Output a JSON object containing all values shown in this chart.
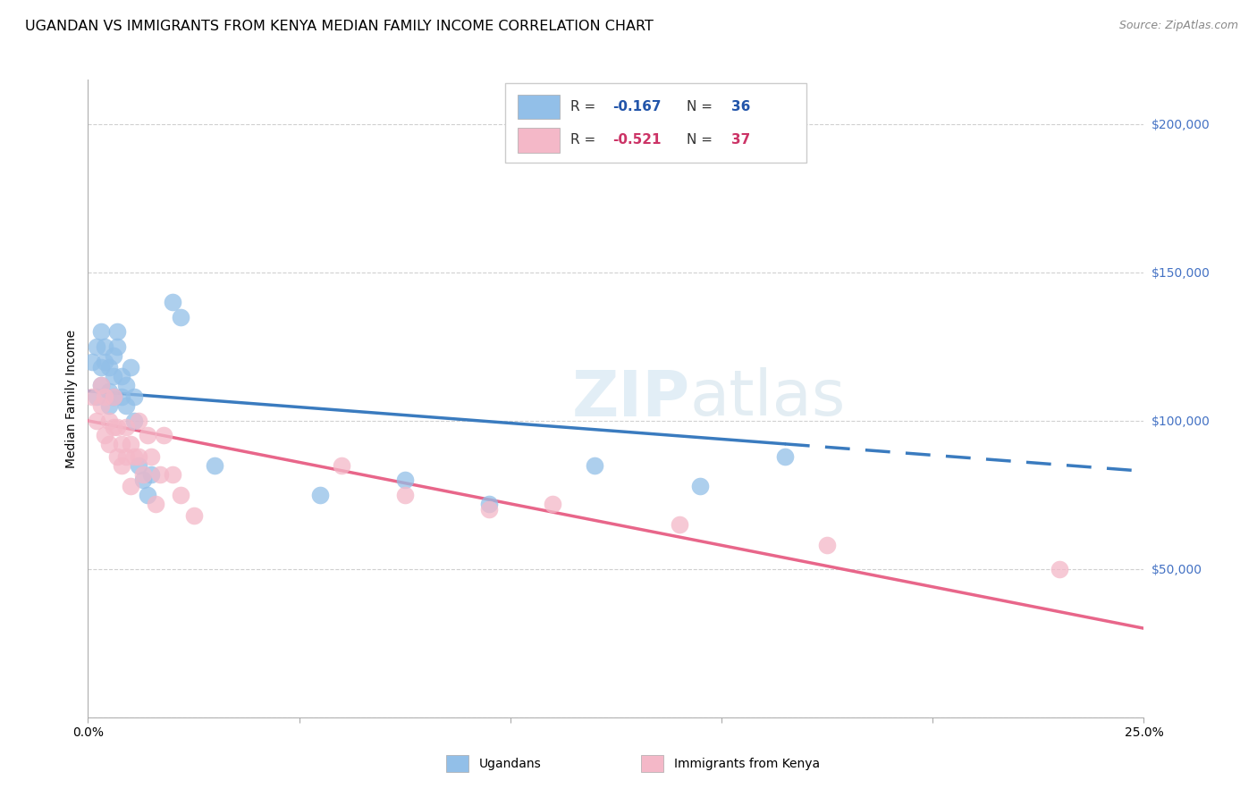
{
  "title": "UGANDAN VS IMMIGRANTS FROM KENYA MEDIAN FAMILY INCOME CORRELATION CHART",
  "source": "Source: ZipAtlas.com",
  "ylabel": "Median Family Income",
  "xlim": [
    0.0,
    0.25
  ],
  "ylim": [
    0,
    215000
  ],
  "yticks": [
    0,
    50000,
    100000,
    150000,
    200000
  ],
  "ytick_labels_right": [
    "",
    "$50,000",
    "$100,000",
    "$150,000",
    "$200,000"
  ],
  "background_color": "#ffffff",
  "watermark_text": "ZIPatlas",
  "blue_color": "#92bfe8",
  "pink_color": "#f4b8c8",
  "blue_line_color": "#3a7bbf",
  "pink_line_color": "#e8668a",
  "grid_color": "#d0d0d0",
  "title_fontsize": 11.5,
  "axis_label_fontsize": 10,
  "tick_fontsize": 10,
  "right_ytick_color": "#4472c4",
  "legend_label1": "Ugandans",
  "legend_label2": "Immigrants from Kenya",
  "blue_line_x0": 0.0,
  "blue_line_y0": 110000,
  "blue_line_x1": 0.25,
  "blue_line_y1": 83000,
  "blue_line_solid_end": 0.165,
  "pink_line_x0": 0.0,
  "pink_line_y0": 100000,
  "pink_line_x1": 0.25,
  "pink_line_y1": 30000,
  "ugandan_x": [
    0.001,
    0.002,
    0.002,
    0.003,
    0.003,
    0.003,
    0.004,
    0.004,
    0.005,
    0.005,
    0.005,
    0.006,
    0.006,
    0.006,
    0.007,
    0.007,
    0.008,
    0.008,
    0.009,
    0.009,
    0.01,
    0.011,
    0.011,
    0.012,
    0.013,
    0.014,
    0.015,
    0.02,
    0.022,
    0.03,
    0.055,
    0.075,
    0.095,
    0.12,
    0.145,
    0.165
  ],
  "ugandan_y": [
    120000,
    125000,
    108000,
    130000,
    118000,
    112000,
    120000,
    125000,
    118000,
    110000,
    105000,
    122000,
    115000,
    108000,
    130000,
    125000,
    115000,
    108000,
    112000,
    105000,
    118000,
    108000,
    100000,
    85000,
    80000,
    75000,
    82000,
    140000,
    135000,
    85000,
    75000,
    80000,
    72000,
    85000,
    78000,
    88000
  ],
  "kenya_x": [
    0.001,
    0.002,
    0.003,
    0.003,
    0.004,
    0.004,
    0.005,
    0.005,
    0.006,
    0.006,
    0.007,
    0.007,
    0.008,
    0.008,
    0.009,
    0.009,
    0.01,
    0.01,
    0.011,
    0.012,
    0.012,
    0.013,
    0.014,
    0.015,
    0.016,
    0.017,
    0.018,
    0.02,
    0.022,
    0.025,
    0.06,
    0.075,
    0.095,
    0.11,
    0.14,
    0.175,
    0.23
  ],
  "kenya_y": [
    108000,
    100000,
    112000,
    105000,
    95000,
    108000,
    100000,
    92000,
    108000,
    98000,
    88000,
    98000,
    92000,
    85000,
    98000,
    88000,
    92000,
    78000,
    88000,
    100000,
    88000,
    82000,
    95000,
    88000,
    72000,
    82000,
    95000,
    82000,
    75000,
    68000,
    85000,
    75000,
    70000,
    72000,
    65000,
    58000,
    50000
  ]
}
